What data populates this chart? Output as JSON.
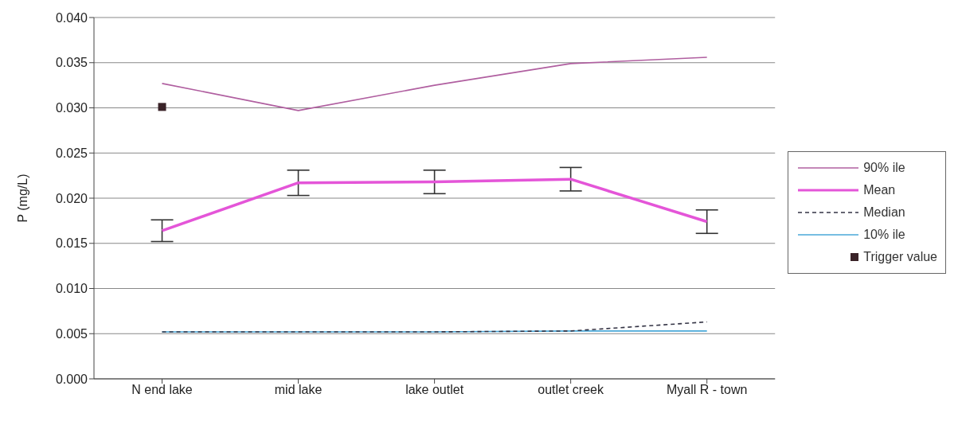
{
  "chart_data": {
    "type": "line",
    "ylabel": "P (mg/L)",
    "categories": [
      "N end lake",
      "mid lake",
      "lake outlet",
      "outlet creek",
      "Myall R - town"
    ],
    "ylim": [
      0,
      0.04
    ],
    "yticks": [
      {
        "value": 0,
        "label": "0.000"
      },
      {
        "value": 0.005,
        "label": "0.005"
      },
      {
        "value": 0.01,
        "label": "0.010"
      },
      {
        "value": 0.015,
        "label": "0.015"
      },
      {
        "value": 0.02,
        "label": "0.020"
      },
      {
        "value": 0.025,
        "label": "0.025"
      },
      {
        "value": 0.03,
        "label": "0.030"
      },
      {
        "value": 0.035,
        "label": "0.035"
      },
      {
        "value": 0.04,
        "label": "0.040"
      }
    ],
    "grid": "y",
    "legend": "right",
    "marker": "none",
    "series": [
      {
        "name": "90% ile",
        "color": "#b05fa0",
        "values": [
          0.0327,
          0.0297,
          0.0325,
          0.0349,
          0.0356
        ]
      },
      {
        "name": "Mean",
        "color": "#e455d8",
        "values": [
          0.0164,
          0.0217,
          0.0218,
          0.0221,
          0.0174
        ],
        "errors": [
          0.0012,
          0.0014,
          0.0013,
          0.0013,
          0.0013
        ]
      },
      {
        "name": "Median",
        "color": "#333344",
        "line_style": "dashed",
        "values": [
          0.0052,
          0.0052,
          0.0052,
          0.0053,
          0.0063
        ]
      },
      {
        "name": "10% ile",
        "color": "#4aa8d8",
        "values": [
          0.0052,
          0.0052,
          0.0052,
          0.0053,
          0.0053
        ]
      },
      {
        "name": "Trigger value",
        "type": "scatter",
        "marker": "square",
        "color": "#3a2328",
        "values": [
          0.0301,
          null,
          null,
          null,
          null
        ]
      }
    ]
  }
}
